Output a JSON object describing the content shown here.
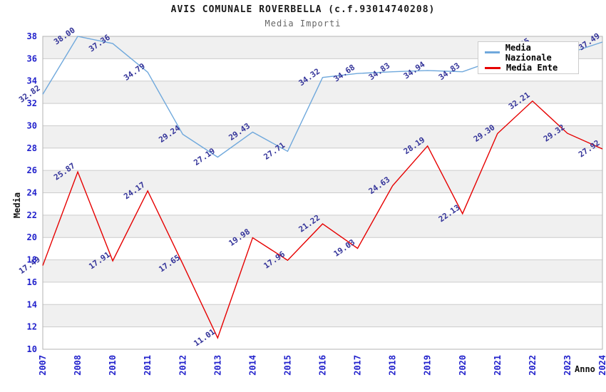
{
  "title": "AVIS COMUNALE ROVERBELLA (c.f.93014740208)",
  "subtitle": "Media Importi",
  "chart_data": {
    "type": "line",
    "title": "AVIS COMUNALE ROVERBELLA (c.f.93014740208)",
    "subtitle": "Media Importi",
    "xlabel": "Anno",
    "ylabel": "Media",
    "ylim": [
      10,
      38
    ],
    "ytick_step": 2,
    "grid": true,
    "legend_position": "top-right",
    "categories": [
      "2007",
      "2008",
      "2010",
      "2011",
      "2012",
      "2013",
      "2014",
      "2015",
      "2016",
      "2017",
      "2018",
      "2019",
      "2020",
      "2021",
      "2022",
      "2023",
      "2024"
    ],
    "series": [
      {
        "name": "Media Nazionale",
        "color": "#6fa8dc",
        "values": [
          32.82,
          38.0,
          37.36,
          34.79,
          29.24,
          27.19,
          29.43,
          27.71,
          34.32,
          34.68,
          34.83,
          34.94,
          34.83,
          35.94,
          37.05,
          36.46,
          37.49
        ],
        "labels_hidden": [
          13
        ]
      },
      {
        "name": "Media Ente",
        "color": "#e60000",
        "values": [
          17.49,
          25.87,
          17.91,
          24.17,
          17.65,
          11.01,
          19.98,
          17.96,
          21.22,
          19.03,
          24.63,
          28.19,
          22.13,
          29.3,
          32.21,
          29.32,
          27.92
        ],
        "labels_hidden": []
      }
    ]
  },
  "legend": {
    "items": [
      {
        "label": "Media Nazionale",
        "color": "#6fa8dc"
      },
      {
        "label": "Media Ente",
        "color": "#e60000"
      }
    ]
  },
  "colors": {
    "band": "#f0f0f0",
    "grid_line": "#cccccc",
    "plot_border": "#b3b3b3",
    "tick_label": "#2222cc",
    "data_label": "#333399",
    "title": "#1a1a1a",
    "subtitle": "#666666"
  }
}
